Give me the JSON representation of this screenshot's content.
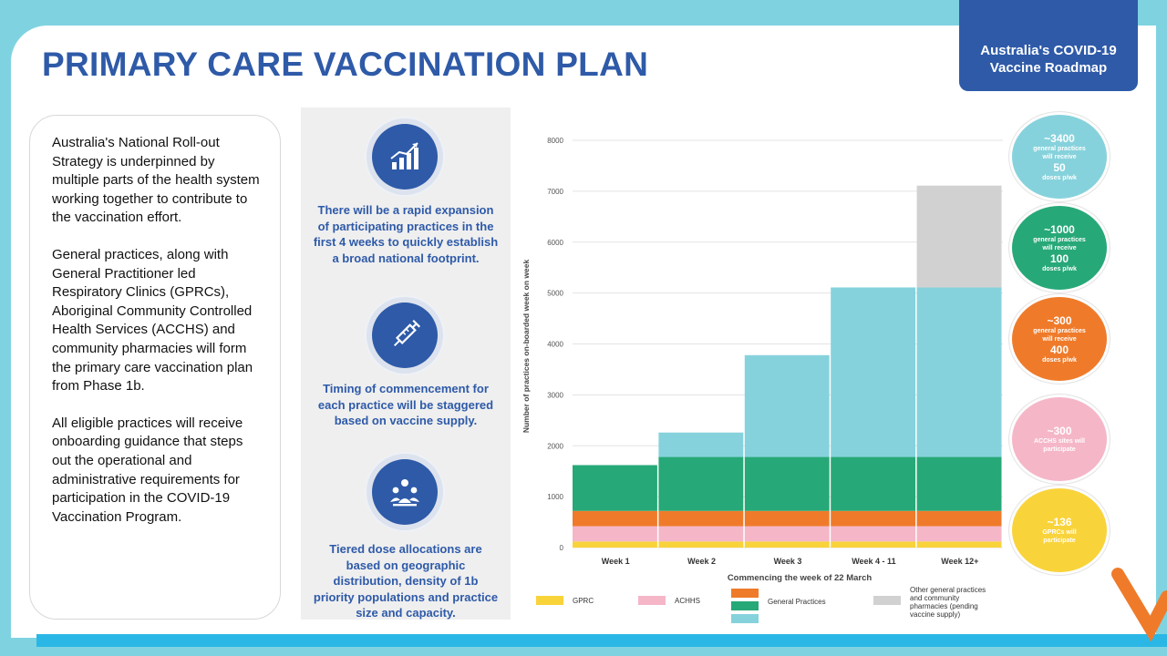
{
  "title": "PRIMARY CARE VACCINATION PLAN",
  "roadmap_tab": {
    "line1": "Australia's COVID-19",
    "line2": "Vaccine Roadmap"
  },
  "left_text": [
    "Australia's National Roll-out Strategy is underpinned by multiple parts of the health system working together to contribute to the vaccination effort.",
    "General practices, along with General Practitioner led Respiratory Clinics (GPRCs),  Aboriginal Community Controlled Health Services (ACCHS) and community pharmacies will form the primary care vaccination plan from Phase 1b.",
    "All eligible practices will receive onboarding guidance that steps out the operational and administrative requirements for participation in the COVID-19 Vaccination Program."
  ],
  "mid_items": [
    {
      "icon": "growth-chart-icon",
      "text": "There will be a rapid expansion of participating practices in the first 4 weeks to quickly establish a broad national footprint."
    },
    {
      "icon": "syringe-icon",
      "text": "Timing of commencement for each practice will be staggered based on vaccine supply."
    },
    {
      "icon": "group-allocation-icon",
      "text": "Tiered dose allocations are based on geographic distribution, density of 1b priority populations and practice size and capacity."
    }
  ],
  "chart_data": {
    "type": "bar",
    "stacked": true,
    "categories": [
      "Week 1",
      "Week 2",
      "Week 3",
      "Week 4 - 11",
      "Week 12+"
    ],
    "xlabel": "Commencing the week of 22 March",
    "ylabel": "Number of practices on-boarded week on week",
    "ylim": [
      0,
      8000
    ],
    "yticks": [
      "0",
      "1000",
      "2000",
      "3000",
      "4000",
      "5000",
      "6000",
      "7000",
      "8000"
    ],
    "grid": true,
    "series": [
      {
        "name": "GPRC",
        "color": "#f9d33a",
        "values": [
          120,
          120,
          120,
          120,
          120
        ]
      },
      {
        "name": "ACHHS",
        "color": "#f5b6c8",
        "values": [
          300,
          300,
          300,
          300,
          300
        ]
      },
      {
        "name": "General Practices",
        "color": "#ef7b2a",
        "values": [
          300,
          300,
          300,
          300,
          300
        ]
      },
      {
        "name": "General Practices",
        "color": "#27a878",
        "values": [
          900,
          1060,
          1060,
          1060,
          1060
        ]
      },
      {
        "name": "General Practices",
        "color": "#86d2dc",
        "values": [
          0,
          480,
          2000,
          3330,
          3330
        ]
      },
      {
        "name": "Other general practices and community pharmacies  (pending vaccine supply)",
        "color": "#d1d1d1",
        "values": [
          0,
          0,
          0,
          0,
          2000
        ]
      }
    ],
    "legend": [
      {
        "label": "GPRC",
        "colors": [
          "#f9d33a"
        ]
      },
      {
        "label": "ACHHS",
        "colors": [
          "#f5b6c8"
        ]
      },
      {
        "label": "General Practices",
        "colors": [
          "#ef7b2a",
          "#27a878",
          "#86d2dc"
        ]
      },
      {
        "label": "Other general practices and community pharmacies  (pending vaccine supply)",
        "colors": [
          "#d1d1d1"
        ]
      }
    ],
    "legend_position": "bottom"
  },
  "bubbles": [
    {
      "color": "#86d2dc",
      "big1": "~3400",
      "small1": "general practices will receive",
      "big2": "50",
      "small2": "doses p/wk"
    },
    {
      "color": "#27a878",
      "big1": "~1000",
      "small1": "general practices will receive",
      "big2": "100",
      "small2": "doses p/wk"
    },
    {
      "color": "#ef7b2a",
      "big1": "~300",
      "small1": "general practices will receive",
      "big2": "400",
      "small2": "doses p/wk"
    },
    {
      "color": "#f5b6c8",
      "big1": "~300",
      "small1": "ACCHS sites will participate",
      "big2": "",
      "small2": ""
    },
    {
      "color": "#f9d33a",
      "big1": "~136",
      "small1": "GPRCs will participate",
      "big2": "",
      "small2": ""
    }
  ]
}
